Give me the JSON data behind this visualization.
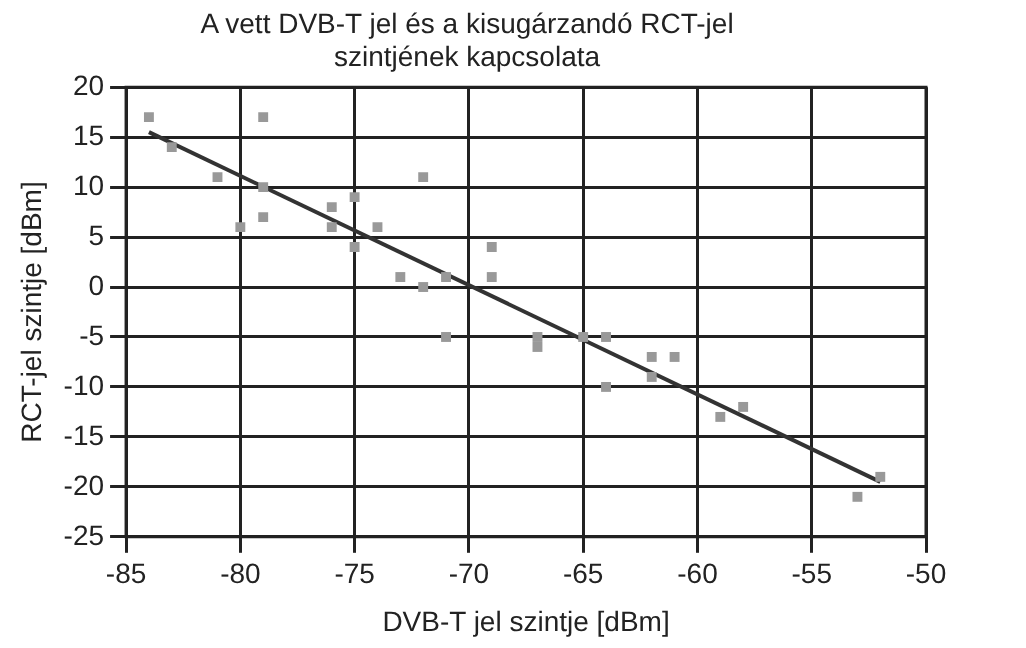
{
  "chart_data": {
    "type": "scatter",
    "title": "A vett DVB-T jel és a kisugárzandó RCT-jel szintjének kapcsolata",
    "xlabel": "DVB-T jel szintje [dBm]",
    "ylabel": "RCT-jel szintje [dBm]",
    "xlim": [
      -85,
      -50
    ],
    "xticks": [
      -85,
      -80,
      -75,
      -70,
      -65,
      -60,
      -55,
      -50
    ],
    "ylim": [
      -25,
      20
    ],
    "yticks": [
      -25,
      -20,
      -15,
      -10,
      -5,
      0,
      5,
      10,
      15,
      20
    ],
    "grid": true,
    "marker": "square",
    "series": [
      {
        "color": "#999999",
        "x": [
          -84,
          -83,
          -81,
          -80,
          -79,
          -79,
          -79,
          -76,
          -76,
          -75,
          -75,
          -74,
          -73,
          -72,
          -72,
          -71,
          -71,
          -69,
          -69,
          -67,
          -67,
          -65,
          -64,
          -64,
          -62,
          -61,
          -62,
          -59,
          -58,
          -53,
          -52
        ],
        "values": [
          17,
          14,
          11,
          6,
          17,
          10,
          7,
          8,
          6,
          9,
          4,
          6,
          1,
          0,
          11,
          1,
          -5,
          4,
          1,
          -5,
          -6,
          -5,
          -5,
          -10,
          -7,
          -7,
          -9,
          -13,
          -12,
          -21,
          -19
        ]
      },
      {
        "type": "line",
        "color": "#333333",
        "x": [
          -84,
          -52
        ],
        "values": [
          15.5,
          -19.5
        ],
        "marker": "none"
      }
    ]
  }
}
